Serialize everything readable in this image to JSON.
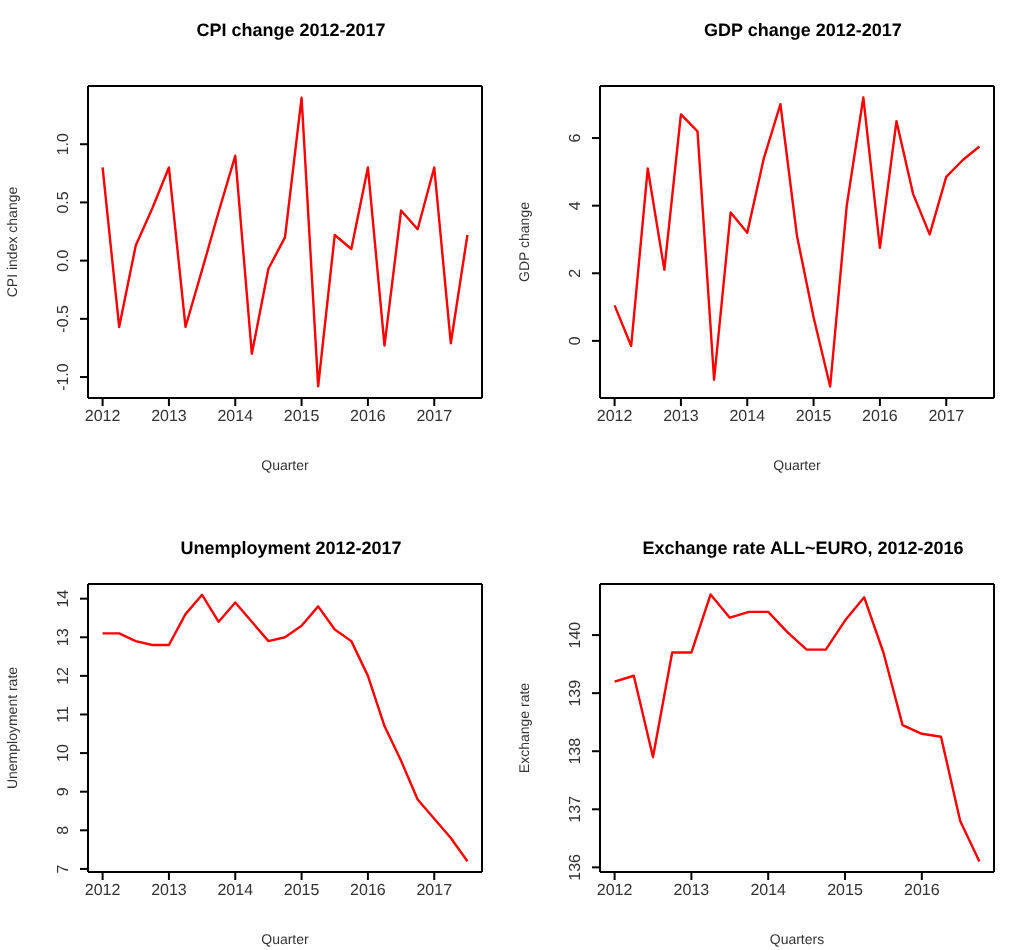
{
  "chart_data": [
    {
      "type": "line",
      "title": "CPI change 2012-2017",
      "xlabel": "Quarter",
      "ylabel": "CPI index change",
      "color": "#ff0000",
      "x": [
        2012,
        2012.25,
        2012.5,
        2012.75,
        2013,
        2013.25,
        2013.5,
        2013.75,
        2014,
        2014.25,
        2014.5,
        2014.75,
        2015,
        2015.25,
        2015.5,
        2015.75,
        2016,
        2016.25,
        2016.5,
        2016.75,
        2017,
        2017.25,
        2017.5
      ],
      "values": [
        0.8,
        -0.57,
        0.13,
        0.45,
        0.8,
        -0.57,
        -0.08,
        0.42,
        0.9,
        -0.8,
        -0.07,
        0.2,
        1.4,
        -1.08,
        0.22,
        0.1,
        0.8,
        -0.73,
        0.43,
        0.27,
        0.8,
        -0.71,
        0.22
      ],
      "xlim": [
        2011.78,
        2017.72
      ],
      "xticks": [
        2012,
        2013,
        2014,
        2015,
        2016,
        2017
      ],
      "ylim": [
        -1.18,
        1.5
      ],
      "yticks": [
        {
          "value": -1,
          "label": "-1.0"
        },
        {
          "value": -0.5,
          "label": "-0.5"
        },
        {
          "value": 0,
          "label": "0.0"
        },
        {
          "value": 0.5,
          "label": "0.5"
        },
        {
          "value": 1,
          "label": "1.0"
        }
      ]
    },
    {
      "type": "line",
      "title": "GDP change 2012-2017",
      "xlabel": "Quarter",
      "ylabel": "GDP change",
      "color": "#ff0000",
      "x": [
        2012,
        2012.25,
        2012.5,
        2012.75,
        2013,
        2013.25,
        2013.5,
        2013.75,
        2014,
        2014.25,
        2014.5,
        2014.75,
        2015,
        2015.25,
        2015.5,
        2015.75,
        2016,
        2016.25,
        2016.5,
        2016.75,
        2017,
        2017.25,
        2017.5
      ],
      "values": [
        1.05,
        -0.15,
        5.1,
        2.1,
        6.7,
        6.2,
        -1.15,
        3.8,
        3.2,
        5.4,
        7.0,
        3.1,
        0.7,
        -1.35,
        4.0,
        7.2,
        2.75,
        6.5,
        4.35,
        3.15,
        4.85,
        5.35,
        5.75
      ],
      "xlim": [
        2011.78,
        2017.72
      ],
      "xticks": [
        2012,
        2013,
        2014,
        2015,
        2016,
        2017
      ],
      "ylim": [
        -1.69,
        7.54
      ],
      "yticks": [
        0,
        2,
        4,
        6
      ]
    },
    {
      "type": "line",
      "title": "Unemployment 2012-2017",
      "xlabel": "Quarter",
      "ylabel": "Unemployment rate",
      "color": "#ff0000",
      "x": [
        2012,
        2012.25,
        2012.5,
        2012.75,
        2013,
        2013.25,
        2013.5,
        2013.75,
        2014,
        2014.25,
        2014.5,
        2014.75,
        2015,
        2015.25,
        2015.5,
        2015.75,
        2016,
        2016.25,
        2016.5,
        2016.75,
        2017,
        2017.25,
        2017.5
      ],
      "values": [
        13.1,
        13.1,
        12.9,
        12.8,
        12.8,
        13.6,
        14.1,
        13.4,
        13.9,
        13.4,
        12.9,
        13.0,
        13.3,
        13.8,
        13.2,
        12.9,
        12.0,
        10.7,
        9.8,
        8.8,
        8.3,
        7.8,
        7.2
      ],
      "xlim": [
        2011.78,
        2017.72
      ],
      "xticks": [
        2012,
        2013,
        2014,
        2015,
        2016,
        2017
      ],
      "ylim": [
        6.92,
        14.38
      ],
      "yticks": [
        7,
        8,
        9,
        10,
        11,
        12,
        13,
        14
      ]
    },
    {
      "type": "line",
      "title": "Exchange rate ALL~EURO, 2012-2016",
      "xlabel": "Quarters",
      "ylabel": "Exchange rate",
      "color": "#ff0000",
      "x": [
        2012,
        2012.25,
        2012.5,
        2012.75,
        2013,
        2013.25,
        2013.5,
        2013.75,
        2014,
        2014.25,
        2014.5,
        2014.75,
        2015,
        2015.25,
        2015.5,
        2015.75,
        2016,
        2016.25,
        2016.5,
        2016.75
      ],
      "values": [
        139.2,
        139.3,
        137.9,
        139.7,
        139.7,
        140.7,
        140.3,
        140.4,
        140.4,
        140.05,
        139.75,
        139.75,
        140.25,
        140.65,
        139.7,
        138.45,
        138.3,
        138.25,
        136.8,
        136.1
      ],
      "xlim": [
        2011.81,
        2016.94
      ],
      "xticks": [
        2012,
        2013,
        2014,
        2015,
        2016
      ],
      "ylim": [
        135.92,
        140.88
      ],
      "yticks": [
        136,
        137,
        138,
        139,
        140
      ]
    }
  ]
}
